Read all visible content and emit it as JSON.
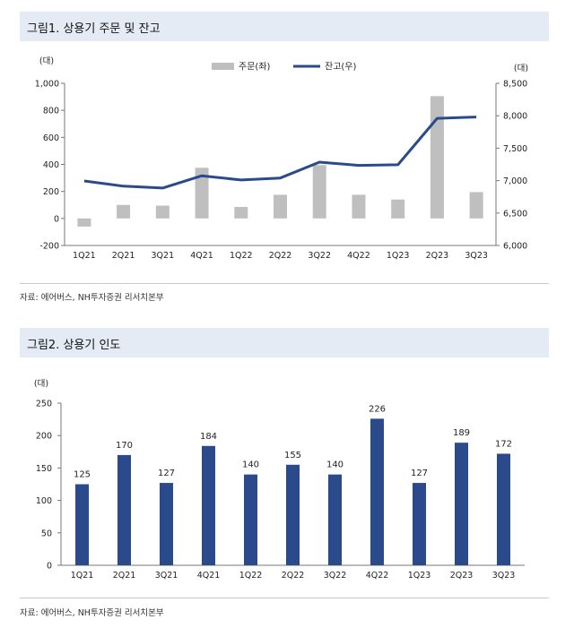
{
  "figure1": {
    "title": "그림1. 상용기 주문 및 잔고",
    "source": "자료: 에어버스, NH투자증권 리서치본부",
    "chart_data": {
      "type": "bar+line",
      "categories": [
        "1Q21",
        "2Q21",
        "3Q21",
        "4Q21",
        "1Q22",
        "2Q22",
        "3Q22",
        "4Q22",
        "1Q23",
        "2Q23",
        "3Q23"
      ],
      "series": [
        {
          "name": "주문(좌)",
          "type": "bar",
          "axis": "left",
          "color": "#bfbfbf",
          "values": [
            -60,
            100,
            95,
            375,
            85,
            175,
            395,
            175,
            140,
            905,
            195
          ]
        },
        {
          "name": "잔고(우)",
          "type": "line",
          "axis": "right",
          "color": "#2b4a8c",
          "values": [
            6995,
            6915,
            6885,
            7075,
            7010,
            7040,
            7285,
            7235,
            7245,
            7960,
            7980
          ]
        }
      ],
      "y_left": {
        "unit": "(대)",
        "min": -200,
        "max": 1000,
        "ticks": [
          "-200",
          "0",
          "200",
          "400",
          "600",
          "800",
          "1,000"
        ]
      },
      "y_right": {
        "unit": "(대)",
        "min": 6000,
        "max": 8500,
        "ticks": [
          "6,000",
          "6,500",
          "7,000",
          "7,500",
          "8,000",
          "8,500"
        ]
      },
      "legend_position": "top-center"
    }
  },
  "figure2": {
    "title": "그림2. 상용기 인도",
    "source": "자료: 에어버스, NH투자증권 리서치본부",
    "chart_data": {
      "type": "bar",
      "categories": [
        "1Q21",
        "2Q21",
        "3Q21",
        "4Q21",
        "1Q22",
        "2Q22",
        "3Q22",
        "4Q22",
        "1Q23",
        "2Q23",
        "3Q23"
      ],
      "values": [
        125,
        170,
        127,
        184,
        140,
        155,
        140,
        226,
        127,
        189,
        172
      ],
      "color": "#2b4a8c",
      "y": {
        "unit": "(대)",
        "min": 0,
        "max": 250,
        "ticks": [
          "0",
          "50",
          "100",
          "150",
          "200",
          "250"
        ]
      }
    }
  }
}
